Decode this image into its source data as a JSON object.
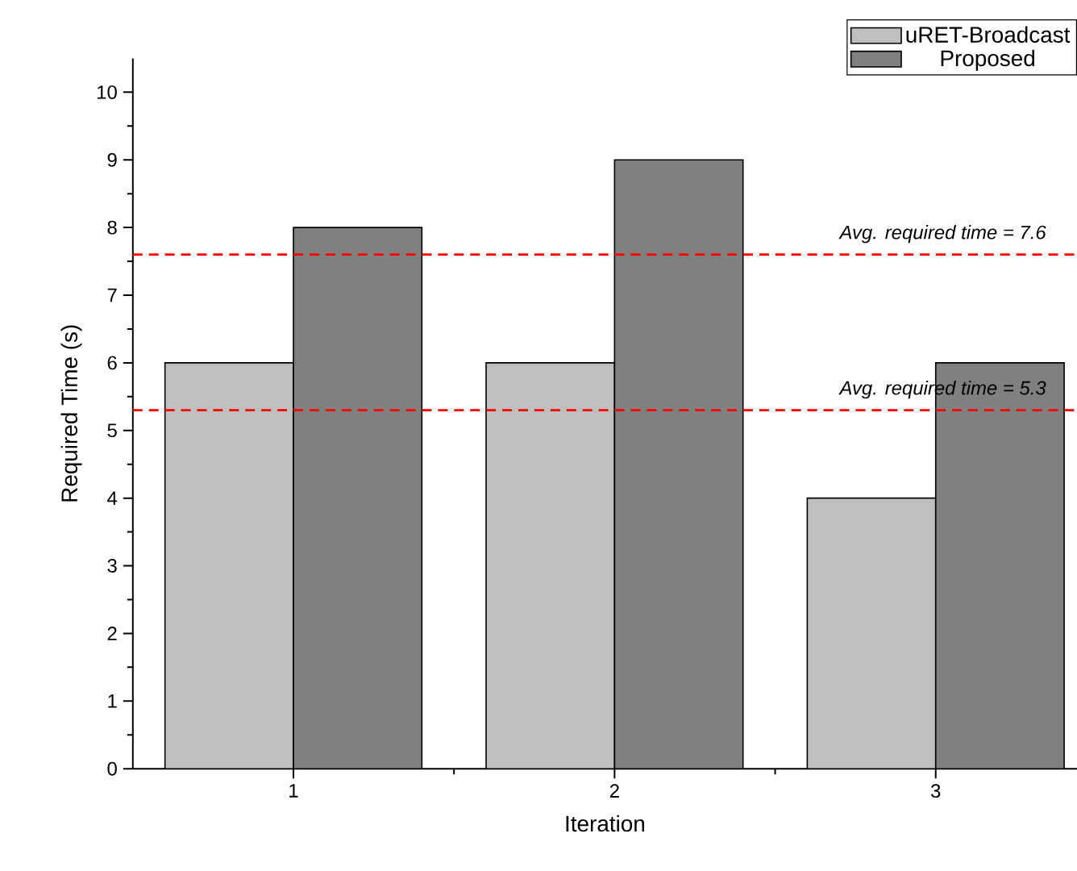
{
  "chart_data": {
    "type": "bar",
    "categories": [
      "1",
      "2",
      "3"
    ],
    "series": [
      {
        "name": "uRET-Broadcast",
        "color": "#bfbfbf",
        "values": [
          6,
          6,
          4
        ]
      },
      {
        "name": "Proposed",
        "color": "#808080",
        "values": [
          8,
          9,
          6
        ]
      }
    ],
    "xlabel": "Iteration",
    "ylabel": "Required Time (s)",
    "ylim": [
      0,
      10.5
    ],
    "yticks": [
      0,
      1,
      2,
      3,
      4,
      5,
      6,
      7,
      8,
      9,
      10
    ],
    "legend": "top right",
    "ref_lines": [
      {
        "axis": "y",
        "value": 7.6,
        "label": "Avg. required time = 7.6",
        "color": "#ff0000",
        "line_style": "dashed"
      },
      {
        "axis": "y",
        "value": 5.3,
        "label": "Avg. required time = 5.3",
        "color": "#ff0000",
        "line_style": "dashed"
      }
    ]
  }
}
